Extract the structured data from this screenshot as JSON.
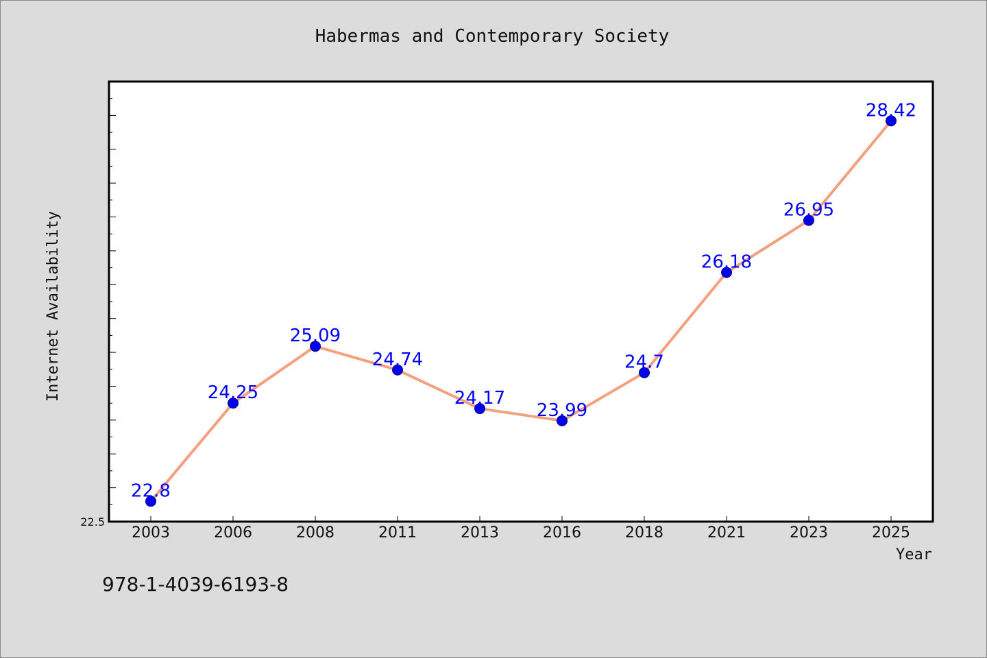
{
  "chart_data": {
    "type": "line",
    "title": "Habermas and Contemporary Society",
    "xlabel": "Year",
    "ylabel": "Internet Availability",
    "categories": [
      "2003",
      "2006",
      "2008",
      "2011",
      "2013",
      "2016",
      "2018",
      "2021",
      "2023",
      "2025"
    ],
    "series": [
      {
        "values": [
          22.8,
          24.25,
          25.09,
          24.74,
          24.17,
          23.99,
          24.7,
          26.18,
          26.95,
          28.42
        ],
        "data_labels": [
          "22.8",
          "24.25",
          "25.09",
          "24.74",
          "24.17",
          "23.99",
          "24.7",
          "26.18",
          "26.95",
          "28.42"
        ]
      }
    ],
    "ylim": [
      22.5,
      29.0
    ],
    "yticks_labeled": [
      "22.5"
    ],
    "grid": false,
    "legend": "none",
    "colors": {
      "line": "#f4a07e",
      "marker_fill": "#0000ee",
      "marker_edge": "#00008b",
      "data_label": "#0000ff",
      "plot_background": "#ffffff",
      "figure_background": "#dcdcdc"
    }
  },
  "footer_text": "978-1-4039-6193-8"
}
